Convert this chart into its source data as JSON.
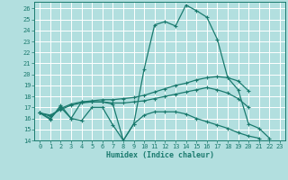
{
  "xlabel": "Humidex (Indice chaleur)",
  "bg_color": "#b2dfdf",
  "grid_color": "#ffffff",
  "line_color": "#1a7a6e",
  "xlim": [
    -0.5,
    23.5
  ],
  "ylim": [
    14,
    26.6
  ],
  "yticks": [
    14,
    15,
    16,
    17,
    18,
    19,
    20,
    21,
    22,
    23,
    24,
    25,
    26
  ],
  "xticks": [
    0,
    1,
    2,
    3,
    4,
    5,
    6,
    7,
    8,
    9,
    10,
    11,
    12,
    13,
    14,
    15,
    16,
    17,
    18,
    19,
    20,
    21,
    22,
    23
  ],
  "series": [
    [
      16.5,
      15.9,
      17.2,
      16.0,
      17.5,
      17.5,
      17.5,
      17.3,
      14.0,
      15.5,
      20.5,
      24.5,
      24.8,
      24.4,
      26.3,
      25.8,
      25.2,
      23.2,
      19.7,
      18.6,
      15.5,
      15.1,
      14.2,
      null
    ],
    [
      16.5,
      16.2,
      16.9,
      17.3,
      17.5,
      17.6,
      17.7,
      17.7,
      17.8,
      17.9,
      18.1,
      18.4,
      18.7,
      19.0,
      19.2,
      19.5,
      19.7,
      19.8,
      19.7,
      19.4,
      18.5,
      null,
      null,
      null
    ],
    [
      16.5,
      16.3,
      16.8,
      17.2,
      17.4,
      17.5,
      17.5,
      17.4,
      17.4,
      17.5,
      17.6,
      17.8,
      18.0,
      18.2,
      18.4,
      18.6,
      18.8,
      18.6,
      18.3,
      17.8,
      17.0,
      null,
      null,
      null
    ],
    [
      16.5,
      16.0,
      17.0,
      16.0,
      15.8,
      17.0,
      17.0,
      15.4,
      14.0,
      15.5,
      16.3,
      16.6,
      16.6,
      16.6,
      16.4,
      16.0,
      15.7,
      15.4,
      15.1,
      14.7,
      14.4,
      14.2,
      null,
      null
    ]
  ]
}
